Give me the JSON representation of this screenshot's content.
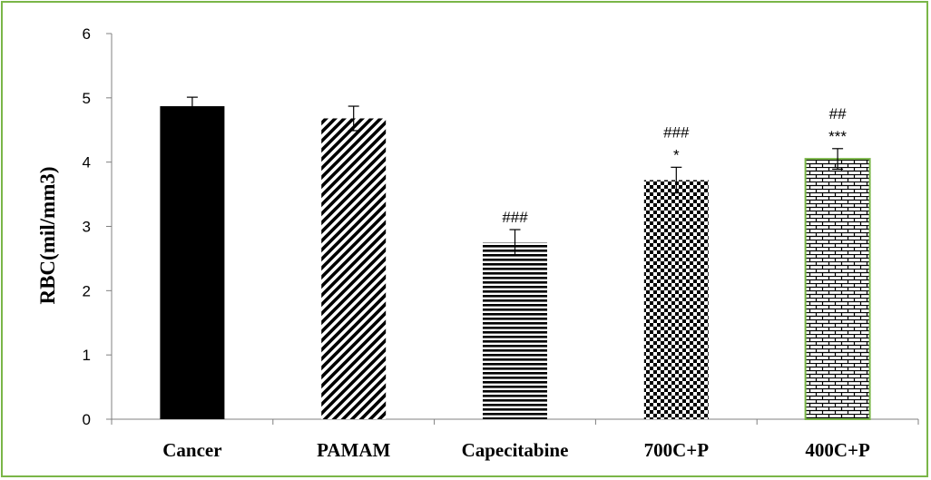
{
  "chart_data": {
    "type": "bar",
    "categories": [
      "Cancer",
      "PAMAM",
      "Capecitabine",
      "700C+P",
      "400C+P"
    ],
    "values": [
      4.87,
      4.68,
      2.75,
      3.72,
      4.05
    ],
    "errors": [
      0.14,
      0.19,
      0.2,
      0.2,
      0.16
    ],
    "annotations": [
      [],
      [],
      [
        "###"
      ],
      [
        "###",
        "*"
      ],
      [
        "##",
        "***"
      ]
    ],
    "patterns": [
      "solid-black",
      "diagonal-stripes",
      "horizontal-stripes",
      "checkerboard",
      "brick"
    ],
    "xlabel": "",
    "ylabel": "RBC(mil/mm3)",
    "ylim": [
      0,
      6
    ],
    "yticks": [
      "0",
      "1",
      "2",
      "3",
      "4",
      "5",
      "6"
    ],
    "grid": false,
    "legend": "none",
    "colors": {
      "bar": "#000000",
      "highlight_border": "#7ab648",
      "frame": "#7ab648",
      "axis": "#808080"
    }
  }
}
